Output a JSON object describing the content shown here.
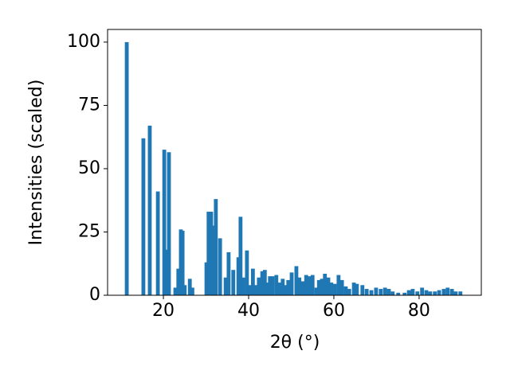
{
  "chart_data": {
    "type": "bar",
    "xlabel": "2θ (°)",
    "ylabel": "Intensities (scaled)",
    "color": "#1f77b4",
    "x": [
      11.4,
      15.3,
      16.8,
      18.7,
      20.2,
      21.0,
      21.3,
      22.8,
      23.5,
      24.1,
      24.5,
      25.0,
      26.2,
      26.8,
      30.1,
      30.6,
      31.2,
      31.8,
      32.3,
      33.3,
      34.6,
      35.3,
      36.4,
      37.6,
      38.1,
      38.7,
      39.6,
      40.4,
      41.0,
      41.6,
      42.4,
      43.2,
      43.8,
      44.3,
      45.0,
      45.6,
      46.5,
      47.3,
      48.0,
      48.6,
      49.3,
      50.1,
      51.2,
      51.9,
      52.7,
      53.5,
      54.2,
      55.0,
      55.9,
      56.5,
      57.2,
      57.9,
      58.7,
      59.4,
      60.2,
      61.1,
      61.9,
      62.8,
      63.6,
      64.7,
      65.4,
      66.7,
      67.7,
      68.8,
      69.9,
      71.0,
      72.0,
      72.9,
      73.8,
      75.1,
      76.6,
      77.6,
      78.5,
      79.6,
      80.7,
      81.7,
      82.6,
      83.7,
      84.7,
      85.8,
      86.7,
      87.7,
      88.6,
      89.7
    ],
    "values": [
      100,
      62,
      67,
      41,
      57.5,
      18,
      56.5,
      3,
      10.5,
      26,
      25.5,
      4,
      6.5,
      3,
      13,
      33,
      33,
      27.5,
      38,
      22.5,
      7,
      17,
      10,
      15,
      31,
      7,
      17.7,
      4,
      10.5,
      4,
      7,
      9.5,
      10,
      5,
      7.5,
      7.5,
      8,
      5,
      6.5,
      4,
      6,
      9,
      11.5,
      7,
      5.5,
      8,
      7.5,
      8,
      3,
      6,
      6.5,
      8.5,
      7,
      5,
      4.5,
      8,
      6,
      3.5,
      2.5,
      5,
      4.5,
      4,
      2.5,
      2,
      3,
      2.5,
      3,
      2.5,
      1.5,
      1,
      1,
      2,
      2.5,
      1.5,
      3,
      2,
      1.5,
      1.5,
      2,
      2.5,
      3,
      2.5,
      1.5,
      1.5
    ],
    "xlim": [
      6.9,
      94.6
    ],
    "ylim": [
      0,
      105
    ],
    "xticks": [
      20,
      40,
      60,
      80
    ],
    "yticks": [
      0,
      25,
      50,
      75,
      100
    ]
  }
}
